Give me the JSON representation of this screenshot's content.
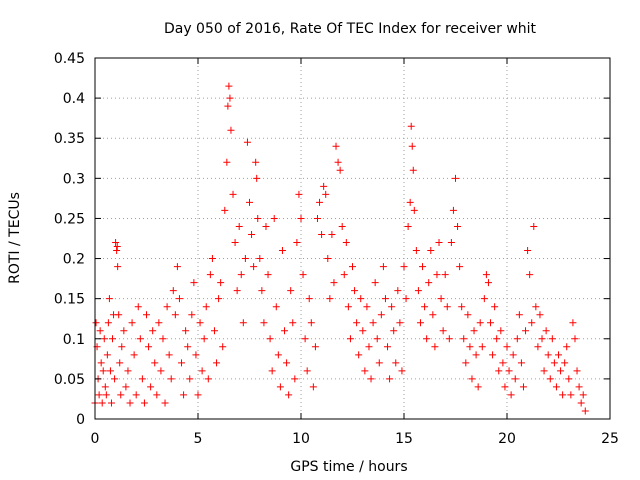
{
  "chart_data": {
    "type": "scatter",
    "title": "Day 050 of 2016, Rate Of TEC Index for receiver whit",
    "xlabel": "GPS time / hours",
    "ylabel": "ROTI / TECUs",
    "xlim": [
      0,
      25
    ],
    "ylim": [
      0,
      0.45
    ],
    "x_ticks": [
      0,
      5,
      10,
      15,
      20,
      25
    ],
    "y_ticks": [
      0,
      0.05,
      0.1,
      0.15,
      0.2,
      0.25,
      0.3,
      0.35,
      0.4,
      0.45
    ],
    "x_tick_labels": [
      "0",
      "5",
      "10",
      "15",
      "20",
      "25"
    ],
    "y_tick_labels": [
      "0",
      "0.05",
      "0.1",
      "0.15",
      "0.2",
      "0.25",
      "0.3",
      "0.35",
      "0.4",
      "0.45"
    ],
    "grid": true,
    "marker": "plus",
    "color": "#ff0000",
    "series": [
      {
        "points": [
          [
            0.0,
            0.02
          ],
          [
            0.05,
            0.12
          ],
          [
            0.1,
            0.09
          ],
          [
            0.15,
            0.05
          ],
          [
            0.2,
            0.03
          ],
          [
            0.25,
            0.11
          ],
          [
            0.3,
            0.07
          ],
          [
            0.35,
            0.02
          ],
          [
            0.4,
            0.06
          ],
          [
            0.45,
            0.1
          ],
          [
            0.5,
            0.04
          ],
          [
            0.55,
            0.03
          ],
          [
            0.6,
            0.08
          ],
          [
            0.65,
            0.12
          ],
          [
            0.7,
            0.15
          ],
          [
            0.75,
            0.06
          ],
          [
            0.8,
            0.02
          ],
          [
            0.85,
            0.1
          ],
          [
            0.9,
            0.13
          ],
          [
            0.95,
            0.05
          ],
          [
            1.0,
            0.22
          ],
          [
            1.05,
            0.21
          ],
          [
            1.08,
            0.215
          ],
          [
            1.1,
            0.19
          ],
          [
            1.15,
            0.13
          ],
          [
            1.2,
            0.07
          ],
          [
            1.25,
            0.03
          ],
          [
            1.3,
            0.09
          ],
          [
            1.4,
            0.11
          ],
          [
            1.5,
            0.04
          ],
          [
            1.6,
            0.06
          ],
          [
            1.7,
            0.02
          ],
          [
            1.8,
            0.12
          ],
          [
            1.9,
            0.08
          ],
          [
            2.0,
            0.03
          ],
          [
            2.1,
            0.14
          ],
          [
            2.2,
            0.1
          ],
          [
            2.3,
            0.05
          ],
          [
            2.4,
            0.02
          ],
          [
            2.5,
            0.13
          ],
          [
            2.6,
            0.09
          ],
          [
            2.7,
            0.04
          ],
          [
            2.8,
            0.11
          ],
          [
            2.9,
            0.07
          ],
          [
            3.0,
            0.03
          ],
          [
            3.1,
            0.12
          ],
          [
            3.2,
            0.06
          ],
          [
            3.3,
            0.1
          ],
          [
            3.4,
            0.02
          ],
          [
            3.5,
            0.14
          ],
          [
            3.6,
            0.08
          ],
          [
            3.7,
            0.05
          ],
          [
            3.8,
            0.16
          ],
          [
            3.9,
            0.13
          ],
          [
            4.0,
            0.19
          ],
          [
            4.1,
            0.15
          ],
          [
            4.2,
            0.07
          ],
          [
            4.3,
            0.03
          ],
          [
            4.4,
            0.11
          ],
          [
            4.5,
            0.09
          ],
          [
            4.6,
            0.05
          ],
          [
            4.7,
            0.13
          ],
          [
            4.8,
            0.17
          ],
          [
            4.9,
            0.08
          ],
          [
            5.0,
            0.03
          ],
          [
            5.1,
            0.12
          ],
          [
            5.2,
            0.06
          ],
          [
            5.3,
            0.1
          ],
          [
            5.4,
            0.14
          ],
          [
            5.5,
            0.05
          ],
          [
            5.6,
            0.18
          ],
          [
            5.7,
            0.2
          ],
          [
            5.8,
            0.11
          ],
          [
            5.9,
            0.07
          ],
          [
            6.0,
            0.15
          ],
          [
            6.1,
            0.17
          ],
          [
            6.2,
            0.09
          ],
          [
            6.3,
            0.26
          ],
          [
            6.4,
            0.32
          ],
          [
            6.45,
            0.39
          ],
          [
            6.5,
            0.415
          ],
          [
            6.55,
            0.4
          ],
          [
            6.6,
            0.36
          ],
          [
            6.7,
            0.28
          ],
          [
            6.8,
            0.22
          ],
          [
            6.9,
            0.16
          ],
          [
            7.0,
            0.24
          ],
          [
            7.1,
            0.18
          ],
          [
            7.2,
            0.12
          ],
          [
            7.3,
            0.2
          ],
          [
            7.4,
            0.345
          ],
          [
            7.5,
            0.27
          ],
          [
            7.6,
            0.23
          ],
          [
            7.7,
            0.19
          ],
          [
            7.8,
            0.32
          ],
          [
            7.85,
            0.3
          ],
          [
            7.9,
            0.25
          ],
          [
            8.0,
            0.2
          ],
          [
            8.1,
            0.16
          ],
          [
            8.2,
            0.12
          ],
          [
            8.3,
            0.24
          ],
          [
            8.4,
            0.18
          ],
          [
            8.5,
            0.1
          ],
          [
            8.6,
            0.06
          ],
          [
            8.7,
            0.25
          ],
          [
            8.8,
            0.14
          ],
          [
            8.9,
            0.08
          ],
          [
            9.0,
            0.04
          ],
          [
            9.1,
            0.21
          ],
          [
            9.2,
            0.11
          ],
          [
            9.3,
            0.07
          ],
          [
            9.4,
            0.03
          ],
          [
            9.5,
            0.16
          ],
          [
            9.6,
            0.12
          ],
          [
            9.7,
            0.05
          ],
          [
            9.8,
            0.22
          ],
          [
            9.9,
            0.28
          ],
          [
            10.0,
            0.25
          ],
          [
            10.1,
            0.18
          ],
          [
            10.2,
            0.1
          ],
          [
            10.3,
            0.06
          ],
          [
            10.4,
            0.15
          ],
          [
            10.5,
            0.12
          ],
          [
            10.6,
            0.04
          ],
          [
            10.7,
            0.09
          ],
          [
            10.8,
            0.25
          ],
          [
            10.9,
            0.27
          ],
          [
            11.0,
            0.23
          ],
          [
            11.1,
            0.29
          ],
          [
            11.2,
            0.28
          ],
          [
            11.3,
            0.2
          ],
          [
            11.4,
            0.15
          ],
          [
            11.5,
            0.23
          ],
          [
            11.6,
            0.17
          ],
          [
            11.7,
            0.34
          ],
          [
            11.8,
            0.32
          ],
          [
            11.9,
            0.31
          ],
          [
            12.0,
            0.24
          ],
          [
            12.1,
            0.18
          ],
          [
            12.2,
            0.22
          ],
          [
            12.3,
            0.14
          ],
          [
            12.4,
            0.1
          ],
          [
            12.5,
            0.19
          ],
          [
            12.6,
            0.16
          ],
          [
            12.7,
            0.12
          ],
          [
            12.8,
            0.08
          ],
          [
            12.9,
            0.15
          ],
          [
            13.0,
            0.11
          ],
          [
            13.1,
            0.06
          ],
          [
            13.2,
            0.14
          ],
          [
            13.3,
            0.09
          ],
          [
            13.4,
            0.05
          ],
          [
            13.5,
            0.12
          ],
          [
            13.6,
            0.17
          ],
          [
            13.7,
            0.1
          ],
          [
            13.8,
            0.07
          ],
          [
            13.9,
            0.13
          ],
          [
            14.0,
            0.19
          ],
          [
            14.1,
            0.15
          ],
          [
            14.2,
            0.09
          ],
          [
            14.3,
            0.05
          ],
          [
            14.4,
            0.14
          ],
          [
            14.5,
            0.11
          ],
          [
            14.6,
            0.07
          ],
          [
            14.7,
            0.16
          ],
          [
            14.8,
            0.12
          ],
          [
            14.9,
            0.06
          ],
          [
            15.0,
            0.19
          ],
          [
            15.1,
            0.15
          ],
          [
            15.2,
            0.24
          ],
          [
            15.3,
            0.27
          ],
          [
            15.35,
            0.365
          ],
          [
            15.4,
            0.34
          ],
          [
            15.45,
            0.31
          ],
          [
            15.5,
            0.26
          ],
          [
            15.6,
            0.21
          ],
          [
            15.7,
            0.16
          ],
          [
            15.8,
            0.12
          ],
          [
            15.9,
            0.19
          ],
          [
            16.0,
            0.14
          ],
          [
            16.1,
            0.1
          ],
          [
            16.2,
            0.17
          ],
          [
            16.3,
            0.21
          ],
          [
            16.4,
            0.13
          ],
          [
            16.5,
            0.09
          ],
          [
            16.6,
            0.18
          ],
          [
            16.7,
            0.22
          ],
          [
            16.8,
            0.15
          ],
          [
            16.9,
            0.11
          ],
          [
            17.0,
            0.18
          ],
          [
            17.1,
            0.14
          ],
          [
            17.2,
            0.1
          ],
          [
            17.3,
            0.22
          ],
          [
            17.4,
            0.26
          ],
          [
            17.5,
            0.3
          ],
          [
            17.6,
            0.24
          ],
          [
            17.7,
            0.19
          ],
          [
            17.8,
            0.14
          ],
          [
            17.9,
            0.1
          ],
          [
            18.0,
            0.07
          ],
          [
            18.1,
            0.13
          ],
          [
            18.2,
            0.09
          ],
          [
            18.3,
            0.05
          ],
          [
            18.4,
            0.11
          ],
          [
            18.5,
            0.08
          ],
          [
            18.6,
            0.04
          ],
          [
            18.7,
            0.12
          ],
          [
            18.8,
            0.09
          ],
          [
            18.9,
            0.15
          ],
          [
            19.0,
            0.18
          ],
          [
            19.1,
            0.17
          ],
          [
            19.2,
            0.12
          ],
          [
            19.3,
            0.08
          ],
          [
            19.4,
            0.14
          ],
          [
            19.5,
            0.1
          ],
          [
            19.6,
            0.06
          ],
          [
            19.7,
            0.11
          ],
          [
            19.8,
            0.07
          ],
          [
            19.9,
            0.04
          ],
          [
            20.0,
            0.09
          ],
          [
            20.1,
            0.06
          ],
          [
            20.2,
            0.03
          ],
          [
            20.3,
            0.08
          ],
          [
            20.4,
            0.05
          ],
          [
            20.5,
            0.1
          ],
          [
            20.6,
            0.13
          ],
          [
            20.7,
            0.07
          ],
          [
            20.8,
            0.04
          ],
          [
            20.9,
            0.11
          ],
          [
            21.0,
            0.21
          ],
          [
            21.1,
            0.18
          ],
          [
            21.2,
            0.12
          ],
          [
            21.3,
            0.24
          ],
          [
            21.4,
            0.14
          ],
          [
            21.5,
            0.09
          ],
          [
            21.6,
            0.13
          ],
          [
            21.7,
            0.1
          ],
          [
            21.8,
            0.06
          ],
          [
            21.9,
            0.11
          ],
          [
            22.0,
            0.08
          ],
          [
            22.1,
            0.05
          ],
          [
            22.2,
            0.1
          ],
          [
            22.3,
            0.07
          ],
          [
            22.4,
            0.04
          ],
          [
            22.5,
            0.08
          ],
          [
            22.6,
            0.06
          ],
          [
            22.7,
            0.03
          ],
          [
            22.8,
            0.07
          ],
          [
            22.9,
            0.09
          ],
          [
            23.0,
            0.05
          ],
          [
            23.1,
            0.03
          ],
          [
            23.2,
            0.12
          ],
          [
            23.3,
            0.1
          ],
          [
            23.4,
            0.06
          ],
          [
            23.5,
            0.04
          ],
          [
            23.6,
            0.02
          ],
          [
            23.7,
            0.03
          ],
          [
            23.8,
            0.01
          ]
        ]
      }
    ]
  }
}
